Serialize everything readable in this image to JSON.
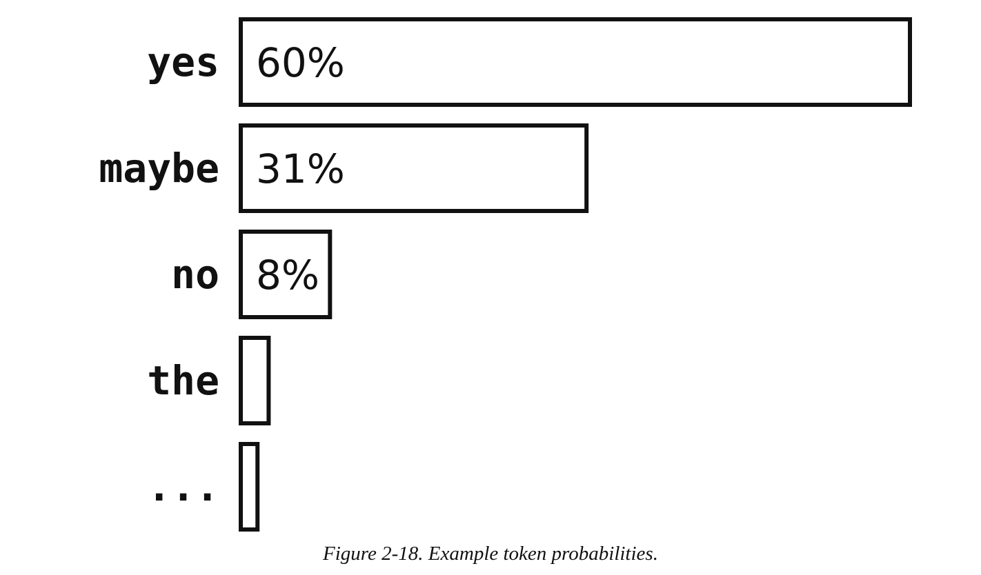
{
  "chart_data": {
    "type": "bar",
    "orientation": "horizontal",
    "categories": [
      "yes",
      "maybe",
      "no",
      "the",
      "..."
    ],
    "values": [
      60,
      31,
      8,
      2.5,
      1.5
    ],
    "value_labels": [
      "60%",
      "31%",
      "8%",
      "",
      ""
    ],
    "xlim": [
      0,
      60
    ],
    "grid": false,
    "legend": "none"
  },
  "caption": {
    "prefix": "Figure 2-18",
    "separator": ". ",
    "text": "Example token probabilities",
    "suffix": "."
  }
}
